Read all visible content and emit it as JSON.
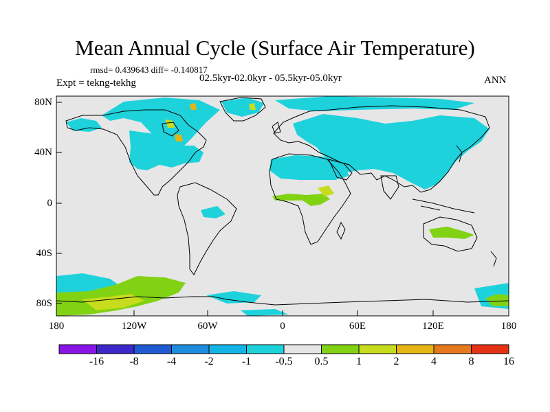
{
  "title": "Mean Annual Cycle (Surface Air Temperature)",
  "stats": "rmsd= 0.439643 diff= -0.140817",
  "expt": "Expt = tekng-tekhg",
  "subtitle": "02.5kyr-02.0kyr - 05.5kyr-05.0kyr",
  "season": "ANN",
  "lat_labels": [
    "80N",
    "40N",
    "0",
    "40S",
    "80S"
  ],
  "lon_labels": [
    "180",
    "120W",
    "60W",
    "0",
    "60E",
    "120E",
    "180"
  ],
  "colorbar": {
    "labels": [
      "-16",
      "-8",
      "-4",
      "-2",
      "-1",
      "-0.5",
      "0.5",
      "1",
      "2",
      "4",
      "8",
      "16"
    ],
    "colors": [
      "#8a14e6",
      "#3c28c8",
      "#1e5ad2",
      "#1e8cdc",
      "#14b4e6",
      "#1ed2dc",
      "#e6e6e6",
      "#82d214",
      "#c8dc1e",
      "#e6b414",
      "#e6781e",
      "#e63214"
    ]
  },
  "colors": {
    "background": "#e6e6e6",
    "cool": "#1ed2dc",
    "warm1": "#82d214",
    "warm2": "#c8dc1e",
    "warm3": "#e6b414"
  }
}
